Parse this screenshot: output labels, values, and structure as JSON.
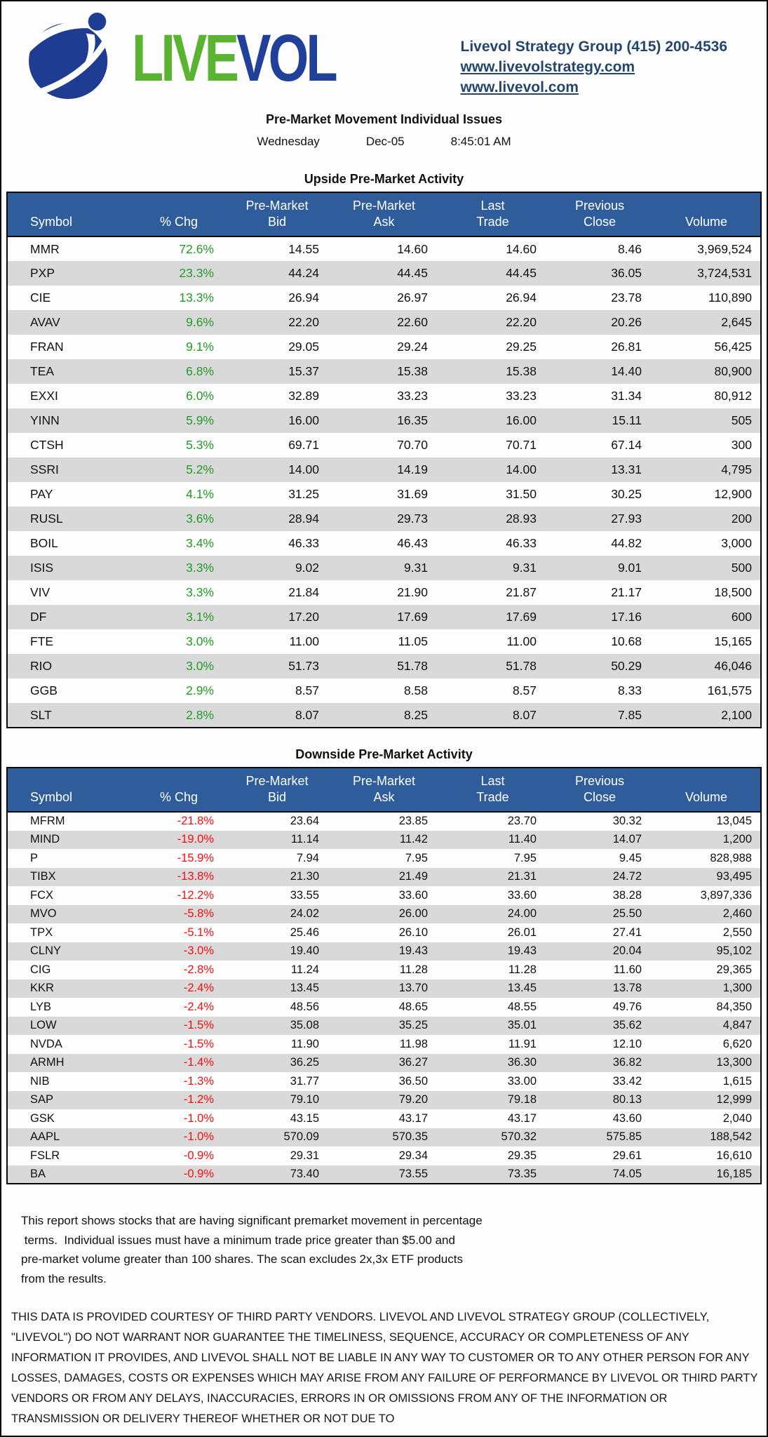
{
  "header": {
    "logo_live": "LIVE",
    "logo_vol": "VOL",
    "contact_line": "Livevol Strategy Group (415) 200-4536",
    "link1": "www.livevolstrategy.com",
    "link2": "www.livevol.com"
  },
  "report": {
    "title": "Pre-Market Movement Individual Issues",
    "day": "Wednesday",
    "date": "Dec-05",
    "time": "8:45:01 AM"
  },
  "tables": {
    "columns_line1": [
      "",
      "",
      "Pre-Market",
      "Pre-Market",
      "Last",
      "Previous",
      ""
    ],
    "columns_line2": [
      "Symbol",
      "% Chg",
      "Bid",
      "Ask",
      "Trade",
      "Close",
      "Volume"
    ],
    "upside": {
      "title": "Upside Pre-Market Activity",
      "rows": [
        [
          "MMR",
          "72.6%",
          "14.55",
          "14.60",
          "14.60",
          "8.46",
          "3,969,524"
        ],
        [
          "PXP",
          "23.3%",
          "44.24",
          "44.45",
          "44.45",
          "36.05",
          "3,724,531"
        ],
        [
          "CIE",
          "13.3%",
          "26.94",
          "26.97",
          "26.94",
          "23.78",
          "110,890"
        ],
        [
          "AVAV",
          "9.6%",
          "22.20",
          "22.60",
          "22.20",
          "20.26",
          "2,645"
        ],
        [
          "FRAN",
          "9.1%",
          "29.05",
          "29.24",
          "29.25",
          "26.81",
          "56,425"
        ],
        [
          "TEA",
          "6.8%",
          "15.37",
          "15.38",
          "15.38",
          "14.40",
          "80,900"
        ],
        [
          "EXXI",
          "6.0%",
          "32.89",
          "33.23",
          "33.23",
          "31.34",
          "80,912"
        ],
        [
          "YINN",
          "5.9%",
          "16.00",
          "16.35",
          "16.00",
          "15.11",
          "505"
        ],
        [
          "CTSH",
          "5.3%",
          "69.71",
          "70.70",
          "70.71",
          "67.14",
          "300"
        ],
        [
          "SSRI",
          "5.2%",
          "14.00",
          "14.19",
          "14.00",
          "13.31",
          "4,795"
        ],
        [
          "PAY",
          "4.1%",
          "31.25",
          "31.69",
          "31.50",
          "30.25",
          "12,900"
        ],
        [
          "RUSL",
          "3.6%",
          "28.94",
          "29.73",
          "28.93",
          "27.93",
          "200"
        ],
        [
          "BOIL",
          "3.4%",
          "46.33",
          "46.43",
          "46.33",
          "44.82",
          "3,000"
        ],
        [
          "ISIS",
          "3.3%",
          "9.02",
          "9.31",
          "9.31",
          "9.01",
          "500"
        ],
        [
          "VIV",
          "3.3%",
          "21.84",
          "21.90",
          "21.87",
          "21.17",
          "18,500"
        ],
        [
          "DF",
          "3.1%",
          "17.20",
          "17.69",
          "17.69",
          "17.16",
          "600"
        ],
        [
          "FTE",
          "3.0%",
          "11.00",
          "11.05",
          "11.00",
          "10.68",
          "15,165"
        ],
        [
          "RIO",
          "3.0%",
          "51.73",
          "51.78",
          "51.78",
          "50.29",
          "46,046"
        ],
        [
          "GGB",
          "2.9%",
          "8.57",
          "8.58",
          "8.57",
          "8.33",
          "161,575"
        ],
        [
          "SLT",
          "2.8%",
          "8.07",
          "8.25",
          "8.07",
          "7.85",
          "2,100"
        ]
      ]
    },
    "downside": {
      "title": "Downside Pre-Market Activity",
      "rows": [
        [
          "MFRM",
          "-21.8%",
          "23.64",
          "23.85",
          "23.70",
          "30.32",
          "13,045"
        ],
        [
          "MIND",
          "-19.0%",
          "11.14",
          "11.42",
          "11.40",
          "14.07",
          "1,200"
        ],
        [
          "P",
          "-15.9%",
          "7.94",
          "7.95",
          "7.95",
          "9.45",
          "828,988"
        ],
        [
          "TIBX",
          "-13.8%",
          "21.30",
          "21.49",
          "21.31",
          "24.72",
          "93,495"
        ],
        [
          "FCX",
          "-12.2%",
          "33.55",
          "33.60",
          "33.60",
          "38.28",
          "3,897,336"
        ],
        [
          "MVO",
          "-5.8%",
          "24.02",
          "26.00",
          "24.00",
          "25.50",
          "2,460"
        ],
        [
          "TPX",
          "-5.1%",
          "25.46",
          "26.10",
          "26.01",
          "27.41",
          "2,550"
        ],
        [
          "CLNY",
          "-3.0%",
          "19.40",
          "19.43",
          "19.43",
          "20.04",
          "95,102"
        ],
        [
          "CIG",
          "-2.8%",
          "11.24",
          "11.28",
          "11.28",
          "11.60",
          "29,365"
        ],
        [
          "KKR",
          "-2.4%",
          "13.45",
          "13.70",
          "13.45",
          "13.78",
          "1,300"
        ],
        [
          "LYB",
          "-2.4%",
          "48.56",
          "48.65",
          "48.55",
          "49.76",
          "84,350"
        ],
        [
          "LOW",
          "-1.5%",
          "35.08",
          "35.25",
          "35.01",
          "35.62",
          "4,847"
        ],
        [
          "NVDA",
          "-1.5%",
          "11.90",
          "11.98",
          "11.91",
          "12.10",
          "6,620"
        ],
        [
          "ARMH",
          "-1.4%",
          "36.25",
          "36.27",
          "36.30",
          "36.82",
          "13,300"
        ],
        [
          "NIB",
          "-1.3%",
          "31.77",
          "36.50",
          "33.00",
          "33.42",
          "1,615"
        ],
        [
          "SAP",
          "-1.2%",
          "79.10",
          "79.20",
          "79.18",
          "80.13",
          "12,999"
        ],
        [
          "GSK",
          "-1.0%",
          "43.15",
          "43.17",
          "43.17",
          "43.60",
          "2,040"
        ],
        [
          "AAPL",
          "-1.0%",
          "570.09",
          "570.35",
          "570.32",
          "575.85",
          "188,542"
        ],
        [
          "FSLR",
          "-0.9%",
          "29.31",
          "29.34",
          "29.35",
          "29.61",
          "16,610"
        ],
        [
          "BA",
          "-0.9%",
          "73.40",
          "73.55",
          "73.35",
          "74.05",
          "16,185"
        ]
      ]
    }
  },
  "footer": {
    "description": "This report shows stocks that are having significant premarket movement in percentage\n terms.  Individual issues must have a minimum trade price greater than $5.00 and\npre-market volume greater than 100 shares. The scan excludes 2x,3x ETF products\nfrom the results.",
    "disclaimer": "THIS DATA IS PROVIDED COURTESY OF THIRD PARTY VENDORS. LIVEVOL AND LIVEVOL STRATEGY GROUP (COLLECTIVELY, \"LIVEVOL\") DO NOT WARRANT NOR GUARANTEE THE TIMELINESS, SEQUENCE, ACCURACY OR COMPLETENESS OF ANY INFORMATION IT PROVIDES, AND LIVEVOL SHALL NOT BE LIABLE IN ANY WAY TO CUSTOMER OR TO ANY OTHER PERSON FOR ANY LOSSES, DAMAGES, COSTS OR EXPENSES WHICH MAY ARISE FROM ANY FAILURE OF PERFORMANCE BY LIVEVOL OR THIRD PARTY VENDORS OR FROM ANY DELAYS, INACCURACIES, ERRORS IN OR OMISSIONS FROM ANY OF THE INFORMATION OR TRANSMISSION OR DELIVERY THEREOF WHETHER OR NOT DUE TO"
  },
  "colors": {
    "header_bg": "#2F5D9B",
    "row_alt": "#D9D9D9",
    "positive": "#229B27",
    "negative": "#FB0D0D",
    "contact_navy": "#24466E",
    "logo_green": "#5BB431",
    "logo_blue": "#20409A",
    "globe_blue": "#1E3C91"
  }
}
